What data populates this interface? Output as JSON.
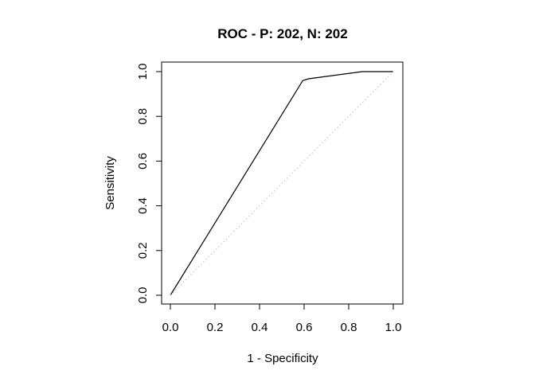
{
  "chart_data": {
    "type": "line",
    "title": "ROC - P: 202, N: 202",
    "xlabel": "1 - Specificity",
    "ylabel": "Sensitivity",
    "xlim": [
      0,
      1
    ],
    "ylim": [
      0,
      1
    ],
    "x_ticks": [
      "0.0",
      "0.2",
      "0.4",
      "0.6",
      "0.8",
      "1.0"
    ],
    "y_ticks": [
      "0.0",
      "0.2",
      "0.4",
      "0.6",
      "0.8",
      "1.0"
    ],
    "grid": false,
    "legend": "none",
    "series": [
      {
        "style": "solid",
        "color": "#000000",
        "x": [
          0.0,
          0.594,
          0.62,
          0.86,
          1.0
        ],
        "y": [
          0.0,
          0.96,
          0.968,
          1.0,
          1.0
        ]
      },
      {
        "style": "dotted",
        "color": "#bbbbbb",
        "x": [
          0.0,
          1.0
        ],
        "y": [
          0.0,
          1.0
        ]
      }
    ]
  }
}
